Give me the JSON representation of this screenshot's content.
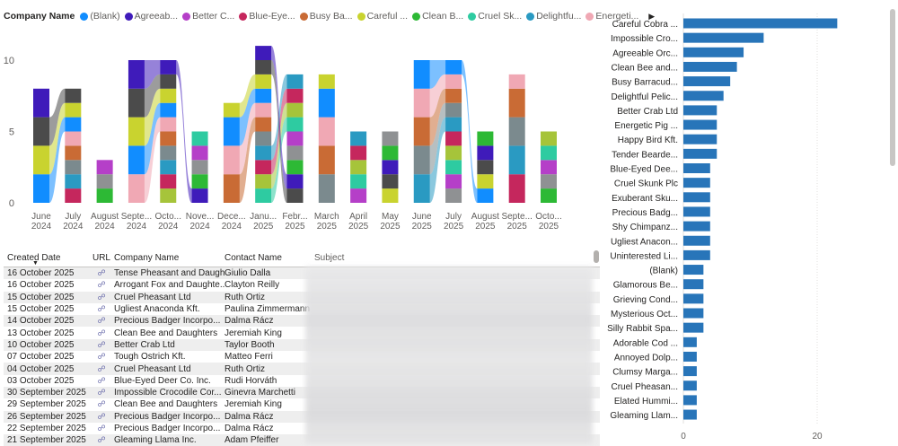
{
  "legend": {
    "title": "Company Name",
    "items": [
      {
        "label": "(Blank)",
        "color": "#118DFF"
      },
      {
        "label": "Agreeab...",
        "color": "#3F1BBA"
      },
      {
        "label": "Better C...",
        "color": "#B53FC8"
      },
      {
        "label": "Blue-Eye...",
        "color": "#C5275D"
      },
      {
        "label": "Busy Ba...",
        "color": "#C96B35"
      },
      {
        "label": "Careful ...",
        "color": "#C9D32F"
      },
      {
        "label": "Clean B...",
        "color": "#2DB935"
      },
      {
        "label": "Cruel Sk...",
        "color": "#2ECBA1"
      },
      {
        "label": "Delightfu...",
        "color": "#2A9AC2"
      },
      {
        "label": "Energeti...",
        "color": "#F0A8B4"
      }
    ],
    "more_arrow": "▶"
  },
  "chart_data": [
    {
      "type": "bar",
      "subtype": "ribbon-stacked-column",
      "x_tick_labels": [
        [
          "June",
          "2024"
        ],
        [
          "July",
          "2024"
        ],
        [
          "August",
          "2024"
        ],
        [
          "Septe...",
          "2024"
        ],
        [
          "Octo...",
          "2024"
        ],
        [
          "Nove...",
          "2024"
        ],
        [
          "Dece...",
          "2024"
        ],
        [
          "Janu...",
          "2025"
        ],
        [
          "Febr...",
          "2025"
        ],
        [
          "March",
          "2025"
        ],
        [
          "April",
          "2025"
        ],
        [
          "May",
          "2025"
        ],
        [
          "June",
          "2025"
        ],
        [
          "July",
          "2025"
        ],
        [
          "August",
          "2025"
        ],
        [
          "Septe...",
          "2025"
        ],
        [
          "Octo...",
          "2025"
        ]
      ],
      "y_ticks": [
        0,
        5,
        10
      ],
      "ylim": [
        0,
        11
      ],
      "totals": [
        8,
        8,
        3,
        10,
        10,
        5,
        7,
        11,
        9,
        9,
        5,
        5,
        10,
        10,
        5,
        9,
        5
      ],
      "colors": [
        "#118DFF",
        "#3F1BBA",
        "#B53FC8",
        "#C5275D",
        "#C96B35",
        "#C9D32F",
        "#2DB935",
        "#2ECBA1",
        "#2A9AC2",
        "#F0A8B4",
        "#4B4B4B",
        "#8F9193",
        "#A6C43A",
        "#7B8A8E"
      ]
    },
    {
      "type": "bar",
      "orientation": "horizontal",
      "categories": [
        "Careful Cobra ...",
        "Impossible Cro...",
        "Agreeable Orc...",
        "Clean Bee and...",
        "Busy Barracud...",
        "Delightful Pelic...",
        "Better Crab Ltd",
        "Energetic Pig ...",
        "Happy Bird Kft.",
        "Tender Bearde...",
        "Blue-Eyed Dee...",
        "Cruel Skunk Plc",
        "Exuberant Sku...",
        "Precious Badg...",
        "Shy Chimpanz...",
        "Ugliest Anacon...",
        "Uninterested Li...",
        "(Blank)",
        "Glamorous Be...",
        "Grieving Cond...",
        "Mysterious Oct...",
        "Silly Rabbit Spa...",
        "Adorable Cod ...",
        "Annoyed Dolp...",
        "Clumsy Marga...",
        "Cruel Pheasan...",
        "Elated Hummi...",
        "Gleaming Llam..."
      ],
      "values": [
        23,
        12,
        9,
        8,
        7,
        6,
        5,
        5,
        5,
        5,
        4,
        4,
        4,
        4,
        4,
        4,
        4,
        3,
        3,
        3,
        3,
        3,
        2,
        2,
        2,
        2,
        2,
        2
      ],
      "x_ticks": [
        0,
        20
      ],
      "xlim": [
        0,
        30
      ],
      "color": "#2875B9"
    }
  ],
  "table": {
    "headers": {
      "created": "Created Date",
      "url": "URL",
      "company": "Company Name",
      "contact": "Contact Name",
      "subject": "Subject"
    },
    "rows": [
      {
        "created": "16 October 2025",
        "company": "Tense Pheasant and Daugh...",
        "contact": "Giulio Dalla"
      },
      {
        "created": "16 October 2025",
        "company": "Arrogant Fox and Daughte...",
        "contact": "Clayton Reilly"
      },
      {
        "created": "15 October 2025",
        "company": "Cruel Pheasant Ltd",
        "contact": "Ruth Ortiz"
      },
      {
        "created": "15 October 2025",
        "company": "Ugliest Anaconda Kft.",
        "contact": "Paulina Zimmermann"
      },
      {
        "created": "14 October 2025",
        "company": "Precious Badger Incorpo...",
        "contact": "Dalma Rácz"
      },
      {
        "created": "13 October 2025",
        "company": "Clean Bee and Daughters",
        "contact": "Jeremiah King"
      },
      {
        "created": "10 October 2025",
        "company": "Better Crab Ltd",
        "contact": "Taylor Booth"
      },
      {
        "created": "07 October 2025",
        "company": "Tough Ostrich Kft.",
        "contact": "Matteo Ferri"
      },
      {
        "created": "04 October 2025",
        "company": "Cruel Pheasant Ltd",
        "contact": "Ruth Ortiz"
      },
      {
        "created": "03 October 2025",
        "company": "Blue-Eyed Deer Co. Inc.",
        "contact": "Rudi Horváth"
      },
      {
        "created": "30 September 2025",
        "company": "Impossible Crocodile Cor...",
        "contact": "Ginevra Marchetti"
      },
      {
        "created": "29 September 2025",
        "company": "Clean Bee and Daughters",
        "contact": "Jeremiah King"
      },
      {
        "created": "26 September 2025",
        "company": "Precious Badger Incorpo...",
        "contact": "Dalma Rácz"
      },
      {
        "created": "22 September 2025",
        "company": "Precious Badger Incorpo...",
        "contact": "Dalma Rácz"
      },
      {
        "created": "21 September 2025",
        "company": "Gleaming Llama Inc.",
        "contact": "Adam Pfeiffer"
      }
    ]
  }
}
